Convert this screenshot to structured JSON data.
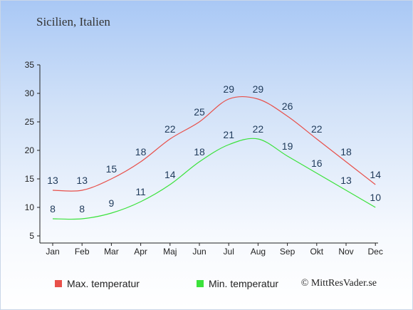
{
  "title": "Sicilien, Italien",
  "credit": "© MittResVader.se",
  "colors": {
    "max": "#e8504a",
    "min": "#3be23b",
    "label": "#1f3a5a"
  },
  "chart_data": {
    "type": "line",
    "categories": [
      "Jan",
      "Feb",
      "Mar",
      "Apr",
      "Maj",
      "Jun",
      "Jul",
      "Aug",
      "Sep",
      "Okt",
      "Nov",
      "Dec"
    ],
    "series": [
      {
        "name": "Max. temperatur",
        "values": [
          13,
          13,
          15,
          18,
          22,
          25,
          29,
          29,
          26,
          22,
          18,
          14
        ]
      },
      {
        "name": "Min. temperatur",
        "values": [
          8,
          8,
          9,
          11,
          14,
          18,
          21,
          22,
          19,
          16,
          13,
          10
        ]
      }
    ],
    "yticks": [
      5,
      10,
      15,
      20,
      25,
      30,
      35
    ],
    "ylim": [
      5,
      35
    ],
    "grid": false,
    "legend": "bottom"
  }
}
